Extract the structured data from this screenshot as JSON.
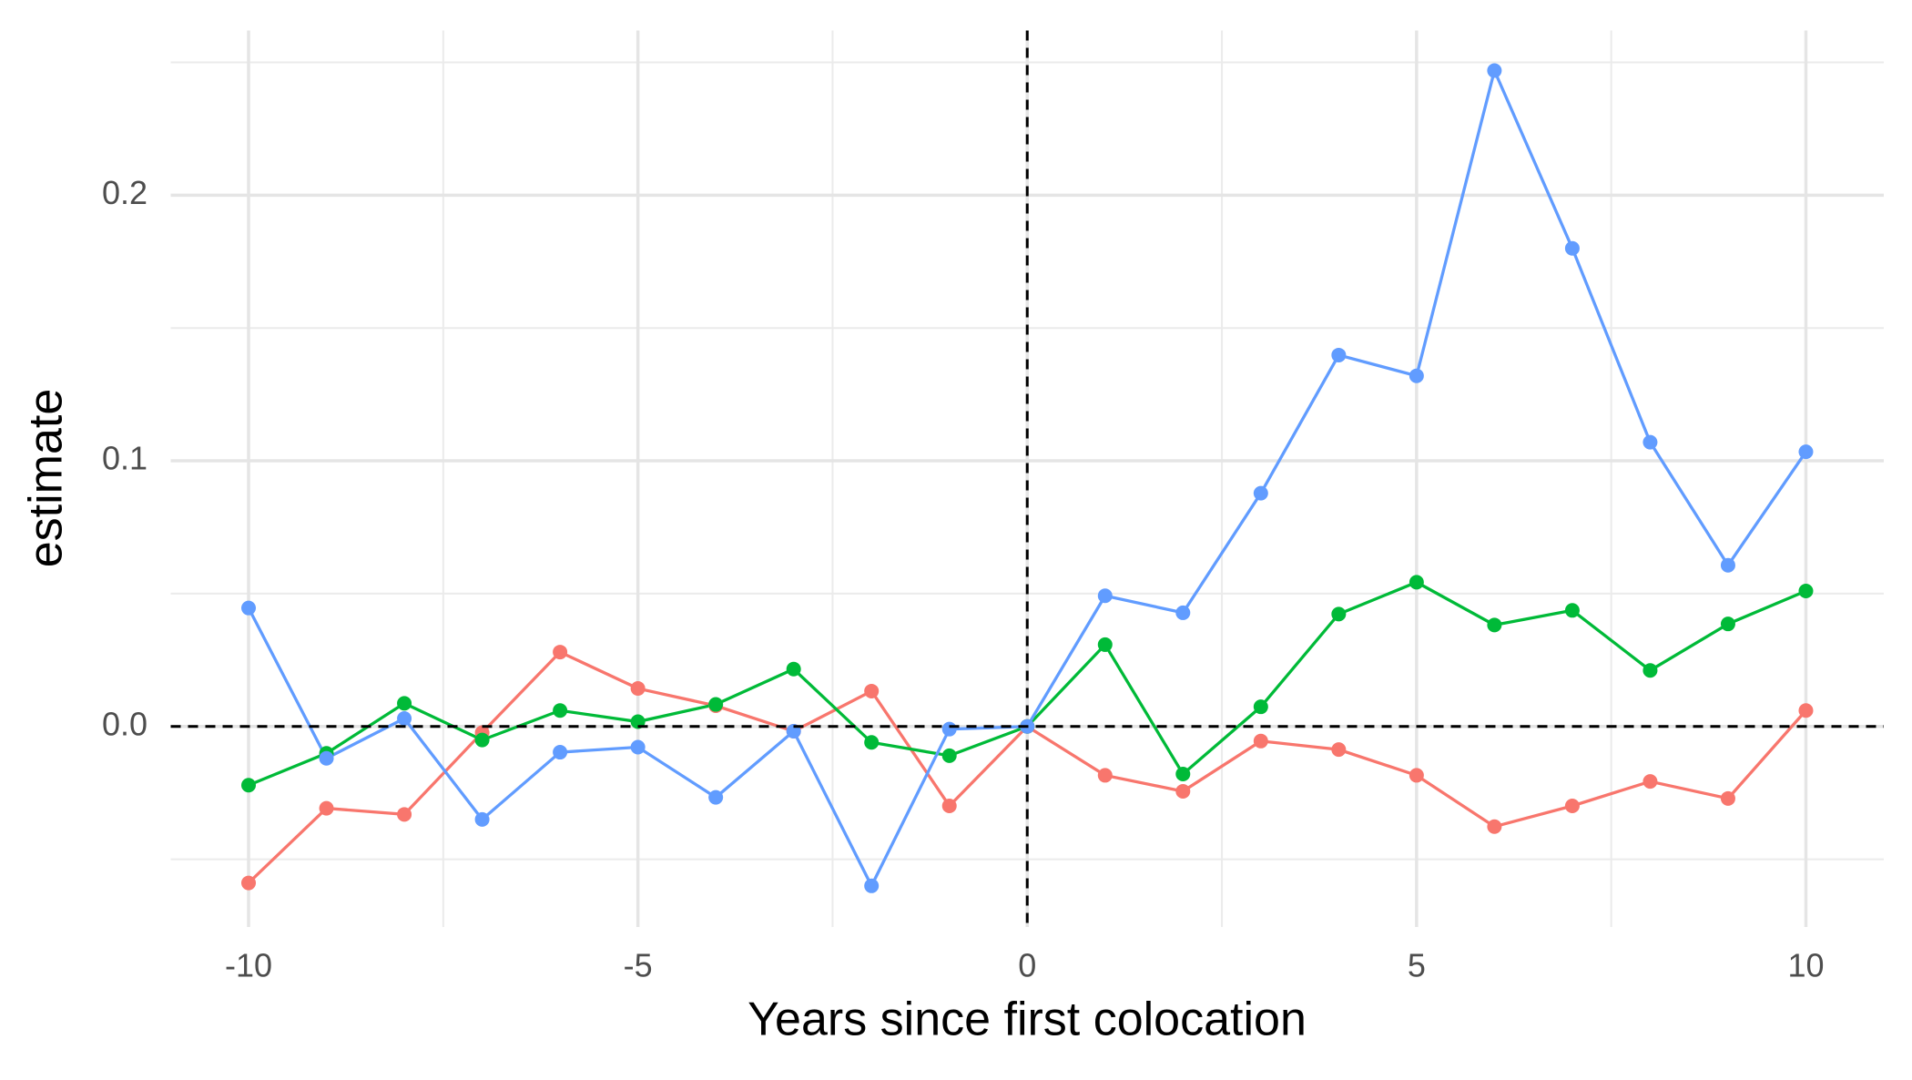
{
  "chart_data": {
    "type": "line",
    "x_label": "Years since first colocation",
    "y_label": "estimate",
    "x": [
      -10,
      -9,
      -8,
      -7,
      -6,
      -5,
      -4,
      -3,
      -2,
      -1,
      0,
      1,
      2,
      3,
      4,
      5,
      6,
      7,
      8,
      9,
      10
    ],
    "series": [
      {
        "color": "#F8766D",
        "values": [
          -0.0589,
          -0.0308,
          -0.0331,
          -0.0023,
          0.028,
          0.0143,
          0.0078,
          -0.0018,
          0.0133,
          -0.0299,
          0,
          -0.0184,
          -0.0244,
          -0.0055,
          -0.0087,
          -0.0184,
          -0.0377,
          -0.0299,
          -0.0207,
          -0.0271,
          0.006
        ]
      },
      {
        "color": "#00BA38",
        "values": [
          -0.0221,
          -0.0101,
          0.0087,
          -0.0051,
          0.006,
          0.0018,
          0.0083,
          0.0216,
          -0.006,
          -0.011,
          0,
          0.0308,
          -0.0179,
          0.0074,
          0.0423,
          0.0543,
          0.0382,
          0.0437,
          0.0211,
          0.0386,
          0.051
        ]
      },
      {
        "color": "#619CFF",
        "values": [
          0.0446,
          -0.012,
          0.003,
          -0.035,
          -0.0097,
          -0.0078,
          -0.0267,
          -0.0018,
          -0.06,
          -0.001,
          0,
          0.0492,
          0.0428,
          0.0878,
          0.1398,
          0.132,
          0.2469,
          0.18,
          0.107,
          0.0607,
          0.1034
        ]
      }
    ],
    "xlim": [
      -11,
      11
    ],
    "ylim": [
      -0.0755,
      0.262
    ],
    "xticks": [
      -10,
      -5,
      0,
      5,
      10
    ],
    "yticks": [
      {
        "value": 0,
        "label": "0.0"
      },
      0.1,
      0.2
    ],
    "x_minor_ticks": [
      -7.5,
      -2.5,
      2.5,
      7.5
    ],
    "y_minor_ticks": [
      -0.05,
      0.05,
      0.15,
      0.25
    ],
    "grid": true,
    "reference_lines": {
      "x": 0,
      "y": 0
    }
  }
}
